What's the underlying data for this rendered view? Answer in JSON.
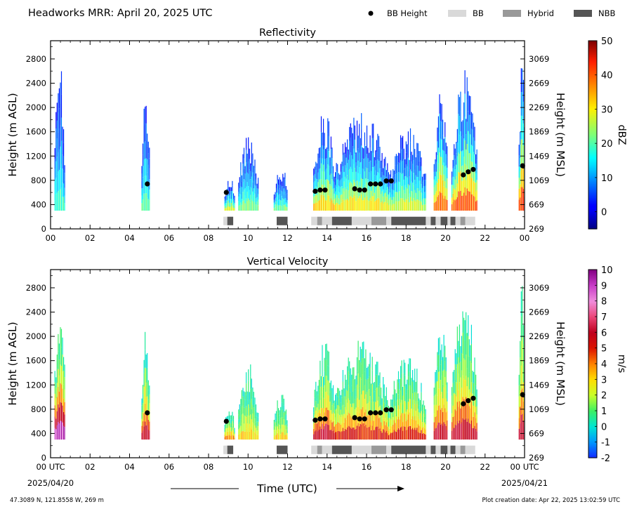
{
  "header": {
    "title": "Headworks MRR:  April 20, 2025 UTC",
    "legend": [
      {
        "label": "BB Height",
        "kind": "dot",
        "color": "#000000"
      },
      {
        "label": "BB",
        "kind": "box",
        "color": "#d9d9d9"
      },
      {
        "label": "Hybrid",
        "kind": "box",
        "color": "#999999"
      },
      {
        "label": "NBB",
        "kind": "box",
        "color": "#555555"
      }
    ]
  },
  "footer": {
    "location": "47.3089 N, 121.8558 W, 269 m",
    "creation": "Plot creation date: Apr 22, 2025 13:02:59 UTC",
    "xlabel": "Time (UTC)",
    "start_date": "2025/04/20",
    "end_date": "2025/04/21"
  },
  "chart_data": [
    {
      "type": "heatmap",
      "title": "Reflectivity",
      "ylabel": "Height (m AGL)",
      "y2label": "Height (m MSL)",
      "cbar_label": "dBZ",
      "xlim": [
        0,
        24
      ],
      "ylim": [
        0,
        3100
      ],
      "xticks": [
        "00",
        "02",
        "04",
        "06",
        "08",
        "10",
        "12",
        "14",
        "16",
        "18",
        "20",
        "22",
        "00"
      ],
      "yticks": [
        0,
        400,
        800,
        1200,
        1600,
        2000,
        2400,
        2800
      ],
      "y2ticks": [
        "269",
        "669",
        "1069",
        "1469",
        "1869",
        "2269",
        "2669",
        "3069"
      ],
      "cbar_range": [
        -5,
        50
      ],
      "cbar_ticks": [
        0,
        10,
        20,
        30,
        40,
        50
      ],
      "colormap": "jet",
      "echo_columns": [
        {
          "start": 0.2,
          "end": 0.7,
          "top": 2950,
          "peak": 18
        },
        {
          "start": 4.6,
          "end": 5.0,
          "top": 2300,
          "peak": 20
        },
        {
          "start": 8.8,
          "end": 9.3,
          "top": 900,
          "peak": 28
        },
        {
          "start": 9.5,
          "end": 10.5,
          "top": 1600,
          "peak": 22
        },
        {
          "start": 11.3,
          "end": 12.0,
          "top": 1100,
          "peak": 22
        },
        {
          "start": 13.3,
          "end": 14.4,
          "top": 2000,
          "peak": 32
        },
        {
          "start": 14.4,
          "end": 17.1,
          "top": 1950,
          "peak": 30
        },
        {
          "start": 17.1,
          "end": 19.0,
          "top": 1700,
          "peak": 27
        },
        {
          "start": 19.4,
          "end": 20.1,
          "top": 2300,
          "peak": 40
        },
        {
          "start": 20.3,
          "end": 21.6,
          "top": 2650,
          "peak": 40
        },
        {
          "start": 23.7,
          "end": 24.0,
          "top": 3000,
          "peak": 42
        }
      ],
      "bb_height": [
        {
          "x": 4.9,
          "y": 740
        },
        {
          "x": 8.9,
          "y": 600
        },
        {
          "x": 13.4,
          "y": 620
        },
        {
          "x": 13.65,
          "y": 640
        },
        {
          "x": 13.9,
          "y": 640
        },
        {
          "x": 15.4,
          "y": 660
        },
        {
          "x": 15.65,
          "y": 640
        },
        {
          "x": 15.9,
          "y": 640
        },
        {
          "x": 16.2,
          "y": 740
        },
        {
          "x": 16.45,
          "y": 740
        },
        {
          "x": 16.7,
          "y": 740
        },
        {
          "x": 17.0,
          "y": 790
        },
        {
          "x": 17.25,
          "y": 790
        },
        {
          "x": 20.9,
          "y": 890
        },
        {
          "x": 21.15,
          "y": 940
        },
        {
          "x": 21.4,
          "y": 980
        },
        {
          "x": 23.9,
          "y": 1040
        }
      ],
      "bb_type": [
        {
          "start": 8.75,
          "end": 8.95,
          "kind": "BB"
        },
        {
          "start": 8.95,
          "end": 9.25,
          "kind": "NBB"
        },
        {
          "start": 11.45,
          "end": 12.0,
          "kind": "NBB"
        },
        {
          "start": 13.2,
          "end": 13.5,
          "kind": "BB"
        },
        {
          "start": 13.5,
          "end": 13.75,
          "kind": "Hybrid"
        },
        {
          "start": 13.75,
          "end": 14.25,
          "kind": "BB"
        },
        {
          "start": 14.25,
          "end": 15.25,
          "kind": "NBB"
        },
        {
          "start": 15.25,
          "end": 16.25,
          "kind": "BB"
        },
        {
          "start": 16.25,
          "end": 17.0,
          "kind": "Hybrid"
        },
        {
          "start": 17.0,
          "end": 17.25,
          "kind": "BB"
        },
        {
          "start": 17.25,
          "end": 19.0,
          "kind": "NBB"
        },
        {
          "start": 19.0,
          "end": 19.25,
          "kind": "BB"
        },
        {
          "start": 19.25,
          "end": 19.5,
          "kind": "NBB"
        },
        {
          "start": 19.5,
          "end": 19.75,
          "kind": "BB"
        },
        {
          "start": 19.75,
          "end": 20.1,
          "kind": "NBB"
        },
        {
          "start": 20.1,
          "end": 20.25,
          "kind": "BB"
        },
        {
          "start": 20.25,
          "end": 20.5,
          "kind": "NBB"
        },
        {
          "start": 20.5,
          "end": 20.75,
          "kind": "BB"
        },
        {
          "start": 20.75,
          "end": 21.0,
          "kind": "Hybrid"
        },
        {
          "start": 21.0,
          "end": 21.5,
          "kind": "BB"
        }
      ]
    },
    {
      "type": "heatmap",
      "title": "Vertical Velocity",
      "ylabel": "Height (m AGL)",
      "y2label": "Height (m MSL)",
      "cbar_label": "m/s",
      "xlim": [
        0,
        24
      ],
      "ylim": [
        0,
        3100
      ],
      "xticks": [
        "00 UTC",
        "02",
        "04",
        "06",
        "08",
        "10",
        "12",
        "14",
        "16",
        "18",
        "20",
        "22",
        "00 UTC"
      ],
      "yticks": [
        0,
        400,
        800,
        1200,
        1600,
        2000,
        2400,
        2800
      ],
      "y2ticks": [
        "269",
        "669",
        "1069",
        "1469",
        "1869",
        "2269",
        "2669",
        "3069"
      ],
      "cbar_range": [
        -2,
        10
      ],
      "cbar_ticks": [
        -2,
        -1,
        0,
        1,
        2,
        3,
        4,
        5,
        6,
        7,
        8,
        9,
        10
      ],
      "colormap": "custom (blue-cyan-green-yellow-orange-red-pink-purple)",
      "echo_columns": [
        {
          "start": 0.2,
          "end": 0.7,
          "top": 2950,
          "peak": 9
        },
        {
          "start": 4.6,
          "end": 5.0,
          "top": 2300,
          "peak": 6
        },
        {
          "start": 8.8,
          "end": 9.3,
          "top": 900,
          "peak": 4
        },
        {
          "start": 9.5,
          "end": 10.5,
          "top": 1600,
          "peak": 3
        },
        {
          "start": 11.3,
          "end": 12.0,
          "top": 1100,
          "peak": 3
        },
        {
          "start": 13.3,
          "end": 14.4,
          "top": 2000,
          "peak": 6
        },
        {
          "start": 14.4,
          "end": 17.1,
          "top": 1950,
          "peak": 5
        },
        {
          "start": 17.1,
          "end": 19.0,
          "top": 1700,
          "peak": 5
        },
        {
          "start": 19.4,
          "end": 20.1,
          "top": 2300,
          "peak": 6
        },
        {
          "start": 20.3,
          "end": 21.6,
          "top": 2650,
          "peak": 6
        },
        {
          "start": 23.7,
          "end": 24.0,
          "top": 3000,
          "peak": 6
        }
      ],
      "bb_height": [
        {
          "x": 4.9,
          "y": 740
        },
        {
          "x": 8.9,
          "y": 600
        },
        {
          "x": 13.4,
          "y": 620
        },
        {
          "x": 13.65,
          "y": 640
        },
        {
          "x": 13.9,
          "y": 640
        },
        {
          "x": 15.4,
          "y": 660
        },
        {
          "x": 15.65,
          "y": 640
        },
        {
          "x": 15.9,
          "y": 640
        },
        {
          "x": 16.2,
          "y": 740
        },
        {
          "x": 16.45,
          "y": 740
        },
        {
          "x": 16.7,
          "y": 740
        },
        {
          "x": 17.0,
          "y": 790
        },
        {
          "x": 17.25,
          "y": 790
        },
        {
          "x": 20.9,
          "y": 890
        },
        {
          "x": 21.15,
          "y": 940
        },
        {
          "x": 21.4,
          "y": 980
        },
        {
          "x": 23.9,
          "y": 1040
        }
      ],
      "bb_type": [
        {
          "start": 8.75,
          "end": 8.95,
          "kind": "BB"
        },
        {
          "start": 8.95,
          "end": 9.25,
          "kind": "NBB"
        },
        {
          "start": 11.45,
          "end": 12.0,
          "kind": "NBB"
        },
        {
          "start": 13.2,
          "end": 13.5,
          "kind": "BB"
        },
        {
          "start": 13.5,
          "end": 13.75,
          "kind": "Hybrid"
        },
        {
          "start": 13.75,
          "end": 14.25,
          "kind": "BB"
        },
        {
          "start": 14.25,
          "end": 15.25,
          "kind": "NBB"
        },
        {
          "start": 15.25,
          "end": 16.25,
          "kind": "BB"
        },
        {
          "start": 16.25,
          "end": 17.0,
          "kind": "Hybrid"
        },
        {
          "start": 17.0,
          "end": 17.25,
          "kind": "BB"
        },
        {
          "start": 17.25,
          "end": 19.0,
          "kind": "NBB"
        },
        {
          "start": 19.0,
          "end": 19.25,
          "kind": "BB"
        },
        {
          "start": 19.25,
          "end": 19.5,
          "kind": "NBB"
        },
        {
          "start": 19.5,
          "end": 19.75,
          "kind": "BB"
        },
        {
          "start": 19.75,
          "end": 20.1,
          "kind": "NBB"
        },
        {
          "start": 20.1,
          "end": 20.25,
          "kind": "BB"
        },
        {
          "start": 20.25,
          "end": 20.5,
          "kind": "NBB"
        },
        {
          "start": 20.5,
          "end": 20.75,
          "kind": "BB"
        },
        {
          "start": 20.75,
          "end": 21.0,
          "kind": "Hybrid"
        },
        {
          "start": 21.0,
          "end": 21.5,
          "kind": "BB"
        }
      ]
    }
  ]
}
